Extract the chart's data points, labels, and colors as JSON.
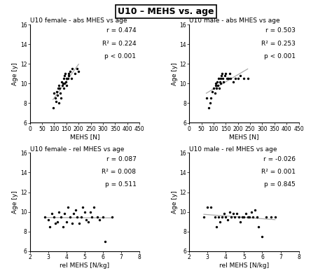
{
  "title": "U10 – MEHS vs. age",
  "subplots": [
    {
      "title": "U10 female - abs MHES vs age",
      "xlabel": "MEHS [N]",
      "ylabel": "Age [y]",
      "xlim": [
        0,
        450
      ],
      "ylim": [
        6,
        16
      ],
      "xticks": [
        0,
        50,
        100,
        150,
        200,
        250,
        300,
        350,
        400,
        450
      ],
      "yticks": [
        6,
        8,
        10,
        12,
        14,
        16
      ],
      "r": 0.474,
      "r2": 0.224,
      "p": "< 0.001",
      "x": [
        95,
        100,
        105,
        108,
        110,
        112,
        115,
        118,
        120,
        122,
        125,
        128,
        130,
        132,
        135,
        138,
        140,
        142,
        143,
        145,
        148,
        150,
        152,
        155,
        158,
        160,
        165,
        170,
        175,
        185,
        195,
        200
      ],
      "y": [
        7.5,
        9.0,
        8.5,
        8.2,
        9.2,
        8.8,
        9.5,
        8.0,
        9.8,
        9.5,
        9.0,
        8.5,
        10.2,
        9.8,
        10.0,
        9.5,
        10.5,
        10.0,
        10.8,
        11.0,
        10.2,
        9.8,
        10.5,
        10.5,
        11.0,
        10.8,
        11.2,
        10.5,
        11.5,
        11.0,
        11.5,
        11.2
      ]
    },
    {
      "title": "U10 male - abs MHES vs age",
      "xlabel": "MEHS [N]",
      "ylabel": "Age [y]",
      "xlim": [
        0,
        450
      ],
      "ylim": [
        6,
        16
      ],
      "xticks": [
        0,
        50,
        100,
        150,
        200,
        250,
        300,
        350,
        400,
        450
      ],
      "yticks": [
        6,
        8,
        10,
        12,
        14,
        16
      ],
      "r": 0.503,
      "r2": 0.253,
      "p": "< 0.001",
      "x": [
        70,
        80,
        85,
        90,
        95,
        100,
        105,
        108,
        110,
        112,
        115,
        118,
        120,
        122,
        125,
        128,
        130,
        132,
        135,
        138,
        140,
        145,
        150,
        155,
        160,
        165,
        170,
        180,
        190,
        200,
        210,
        225,
        240
      ],
      "y": [
        8.5,
        7.5,
        8.0,
        8.5,
        9.2,
        9.5,
        9.0,
        9.8,
        10.0,
        9.5,
        10.2,
        9.8,
        10.5,
        9.5,
        10.2,
        10.0,
        10.5,
        10.8,
        11.0,
        10.5,
        10.2,
        10.8,
        11.0,
        10.5,
        10.5,
        11.0,
        10.5,
        10.2,
        10.5,
        10.5,
        10.8,
        10.5,
        10.5
      ]
    },
    {
      "title": "U10 female - rel MHES vs age",
      "xlabel": "rel MEHS [N/kg]",
      "ylabel": "Age [y]",
      "xlim": [
        2,
        8
      ],
      "ylim": [
        6,
        16
      ],
      "xticks": [
        2,
        3,
        4,
        5,
        6,
        7,
        8
      ],
      "yticks": [
        6,
        8,
        10,
        12,
        14,
        16
      ],
      "r": 0.087,
      "r2": 0.008,
      "p": "= 0.511",
      "x": [
        2.8,
        3.0,
        3.1,
        3.2,
        3.3,
        3.4,
        3.5,
        3.6,
        3.7,
        3.8,
        3.9,
        4.0,
        4.1,
        4.2,
        4.3,
        4.4,
        4.5,
        4.6,
        4.7,
        4.8,
        4.9,
        5.0,
        5.1,
        5.2,
        5.3,
        5.4,
        5.5,
        5.7,
        5.8,
        6.0,
        6.1,
        6.5
      ],
      "y": [
        9.5,
        9.2,
        8.5,
        9.8,
        9.5,
        8.8,
        9.0,
        10.0,
        9.5,
        8.5,
        9.8,
        9.0,
        10.5,
        9.5,
        8.8,
        9.8,
        10.2,
        9.5,
        8.8,
        9.5,
        10.5,
        10.0,
        9.2,
        9.0,
        10.0,
        9.5,
        10.5,
        9.5,
        9.2,
        9.5,
        7.0,
        9.5
      ]
    },
    {
      "title": "U10 male - rel MHES vs age",
      "xlabel": "rel MEHS [N/kg]",
      "ylabel": "Age [y]",
      "xlim": [
        2,
        8
      ],
      "ylim": [
        6,
        16
      ],
      "xticks": [
        2,
        3,
        4,
        5,
        6,
        7,
        8
      ],
      "yticks": [
        6,
        8,
        10,
        12,
        14,
        16
      ],
      "r": -0.026,
      "r2": 0.001,
      "p": "= 0.845",
      "x": [
        2.8,
        3.0,
        3.2,
        3.4,
        3.5,
        3.6,
        3.7,
        3.8,
        3.9,
        4.0,
        4.1,
        4.2,
        4.3,
        4.4,
        4.5,
        4.6,
        4.7,
        4.8,
        4.9,
        5.0,
        5.1,
        5.2,
        5.3,
        5.4,
        5.5,
        5.6,
        5.7,
        5.8,
        6.0,
        6.2,
        6.5,
        6.7
      ],
      "y": [
        9.5,
        10.5,
        10.5,
        9.5,
        8.5,
        9.5,
        9.0,
        9.5,
        9.8,
        9.5,
        9.2,
        10.0,
        9.5,
        9.8,
        9.5,
        9.8,
        9.5,
        9.0,
        9.5,
        9.5,
        9.8,
        9.5,
        9.5,
        10.0,
        9.5,
        10.2,
        9.5,
        8.5,
        7.5,
        9.5,
        9.5,
        9.5
      ]
    }
  ],
  "dot_color": "#000000",
  "dot_size": 6,
  "line_color": "#aaaaaa",
  "background_color": "#ffffff",
  "title_fontsize": 9,
  "subtitle_fontsize": 6.5,
  "axis_fontsize": 6.5,
  "tick_fontsize": 5.5,
  "stats_fontsize": 6.5
}
